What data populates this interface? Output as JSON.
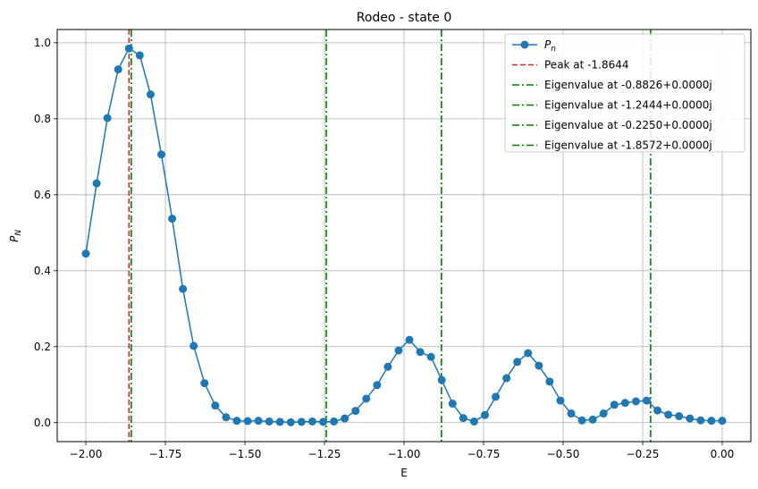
{
  "chart_data": {
    "type": "line",
    "title": "Rodeo - state 0",
    "xlabel": "E",
    "ylabel": "P_N",
    "xlim": [
      -2.09,
      0.09
    ],
    "ylim": [
      -0.05,
      1.035
    ],
    "xticks": [
      -2.0,
      -1.75,
      -1.5,
      -1.25,
      -1.0,
      -0.75,
      -0.5,
      -0.25,
      0.0
    ],
    "xtick_labels": [
      "−2.00",
      "−1.75",
      "−1.50",
      "−1.25",
      "−1.00",
      "−0.75",
      "−0.50",
      "−0.25",
      "0.00"
    ],
    "yticks": [
      0.0,
      0.2,
      0.4,
      0.6,
      0.8,
      1.0
    ],
    "ytick_labels": [
      "0.0",
      "0.2",
      "0.4",
      "0.6",
      "0.8",
      "1.0"
    ],
    "grid": true,
    "legend_position": "upper-right",
    "series": [
      {
        "name": "P_n",
        "color": "#1f77b4",
        "x": [
          -2.0,
          -1.9661,
          -1.9322,
          -1.8983,
          -1.8644,
          -1.8305,
          -1.7966,
          -1.7627,
          -1.7288,
          -1.6949,
          -1.661,
          -1.6271,
          -1.5932,
          -1.5593,
          -1.5254,
          -1.4915,
          -1.4576,
          -1.4237,
          -1.3898,
          -1.3559,
          -1.322,
          -1.2881,
          -1.2542,
          -1.2203,
          -1.1864,
          -1.1525,
          -1.1186,
          -1.0847,
          -1.0508,
          -1.0169,
          -0.9831,
          -0.9492,
          -0.9153,
          -0.8814,
          -0.8475,
          -0.8136,
          -0.7797,
          -0.7458,
          -0.7119,
          -0.678,
          -0.6441,
          -0.6102,
          -0.5763,
          -0.5424,
          -0.5085,
          -0.4746,
          -0.4407,
          -0.4068,
          -0.3729,
          -0.339,
          -0.3051,
          -0.2712,
          -0.2373,
          -0.2034,
          -0.1695,
          -0.1356,
          -0.1017,
          -0.0678,
          -0.0339,
          0.0
        ],
        "y": [
          0.445,
          0.63,
          0.802,
          0.93,
          0.985,
          0.967,
          0.864,
          0.706,
          0.537,
          0.352,
          0.202,
          0.104,
          0.045,
          0.014,
          0.005,
          0.004,
          0.005,
          0.003,
          0.002,
          0.001,
          0.002,
          0.003,
          0.002,
          0.003,
          0.011,
          0.031,
          0.063,
          0.099,
          0.147,
          0.19,
          0.218,
          0.186,
          0.173,
          0.112,
          0.05,
          0.012,
          0.003,
          0.02,
          0.068,
          0.117,
          0.16,
          0.183,
          0.15,
          0.108,
          0.058,
          0.024,
          0.006,
          0.008,
          0.024,
          0.047,
          0.052,
          0.056,
          0.058,
          0.032,
          0.021,
          0.017,
          0.011,
          0.006,
          0.005,
          0.005
        ]
      }
    ],
    "vlines": [
      {
        "name": "Peak at -1.8644",
        "x": -1.8644,
        "color": "#d62728",
        "style": "dashed"
      },
      {
        "name": "Eigenvalue at -0.8826+0.0000j",
        "x": -0.8826,
        "color": "#008000",
        "style": "dashdot"
      },
      {
        "name": "Eigenvalue at -1.2444+0.0000j",
        "x": -1.2444,
        "color": "#008000",
        "style": "dashdot"
      },
      {
        "name": "Eigenvalue at -0.2250+0.0000j",
        "x": -0.225,
        "color": "#008000",
        "style": "dashdot"
      },
      {
        "name": "Eigenvalue at -1.8572+0.0000j",
        "x": -1.8572,
        "color": "#008000",
        "style": "dashdot"
      }
    ]
  }
}
